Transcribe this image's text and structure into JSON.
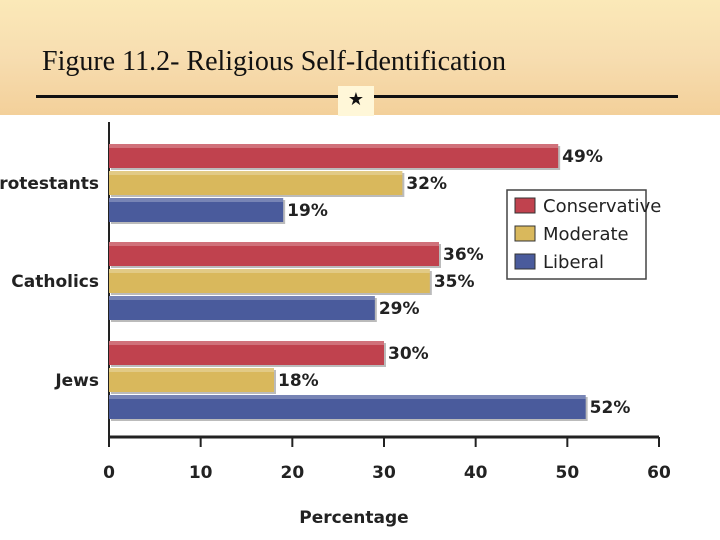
{
  "header": {
    "title": "Figure 11.2- Religious Self-Identification",
    "star": "★"
  },
  "chart_data": {
    "type": "bar",
    "orientation": "horizontal",
    "categories": [
      "Protestants",
      "Catholics",
      "Jews"
    ],
    "series": [
      {
        "name": "Conservative",
        "values": [
          49,
          36,
          30
        ],
        "labels": [
          "49%",
          "36%",
          "30%"
        ],
        "color": "#c0424e"
      },
      {
        "name": "Moderate",
        "values": [
          32,
          35,
          18
        ],
        "labels": [
          "32%",
          "35%",
          "18%"
        ],
        "color": "#d9b85c"
      },
      {
        "name": "Liberal",
        "values": [
          19,
          29,
          52
        ],
        "labels": [
          "19%",
          "29%",
          "52%"
        ],
        "color": "#4a5b9c"
      }
    ],
    "xlabel": "Percentage",
    "xlim": [
      0,
      60
    ],
    "xticks": [
      0,
      10,
      20,
      30,
      40,
      50,
      60
    ],
    "legend_position": "right"
  }
}
